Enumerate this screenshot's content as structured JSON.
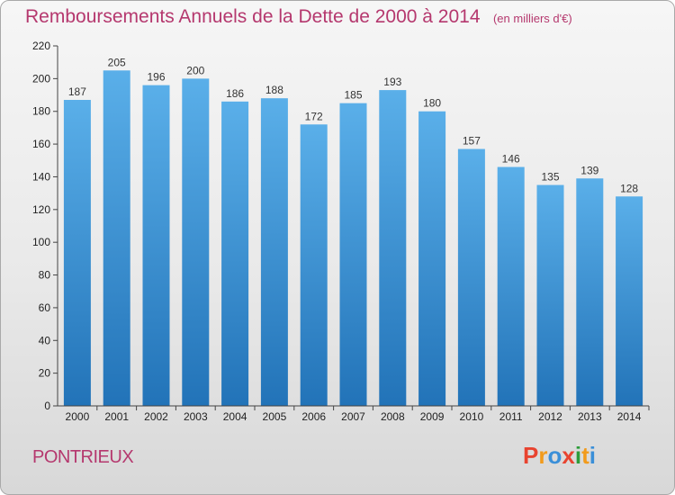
{
  "header": {
    "title": "Remboursements Annuels de la Dette de 2000 à 2014",
    "unit": "(en milliers d'€)"
  },
  "footer": {
    "commune": "PONTRIEUX",
    "logo_text": "Proxiti",
    "logo_colors": [
      "#e8432f",
      "#f29b1c",
      "#3a8fd8",
      "#e8432f",
      "#2d9c3a",
      "#f29b1c",
      "#3a8fd8"
    ]
  },
  "colors": {
    "bar_top": "#5aafe9",
    "bar_bottom": "#2273b8",
    "title": "#b5386e"
  },
  "chart_data": {
    "type": "bar",
    "title": "Remboursements Annuels de la Dette de 2000 à 2014",
    "subtitle": "(en milliers d'€)",
    "xlabel": "",
    "ylabel": "",
    "categories": [
      "2000",
      "2001",
      "2002",
      "2003",
      "2004",
      "2005",
      "2006",
      "2007",
      "2008",
      "2009",
      "2010",
      "2011",
      "2012",
      "2013",
      "2014"
    ],
    "values": [
      187,
      205,
      196,
      200,
      186,
      188,
      172,
      185,
      193,
      180,
      157,
      146,
      135,
      139,
      128
    ],
    "ylim": [
      0,
      220
    ],
    "yticks": [
      0,
      20,
      40,
      60,
      80,
      100,
      120,
      140,
      160,
      180,
      200,
      220
    ],
    "grid": false,
    "data_labels": true
  }
}
